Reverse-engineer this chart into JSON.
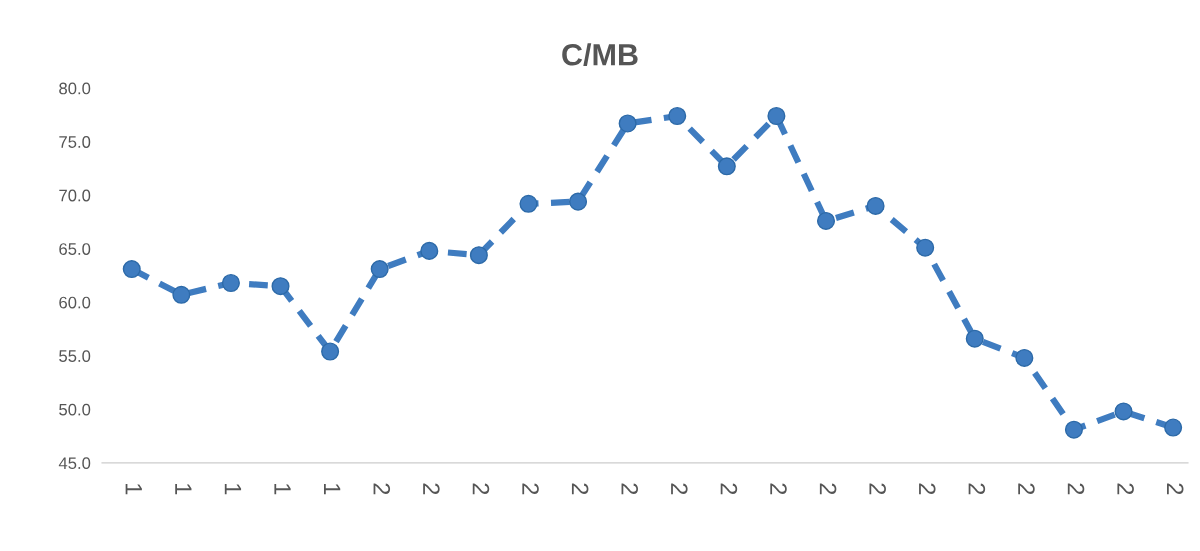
{
  "chart_data": {
    "type": "line",
    "title": "C/MB",
    "categories": [
      "1",
      "1",
      "1",
      "1",
      "1",
      "2",
      "2",
      "2",
      "2",
      "2",
      "2",
      "2",
      "2",
      "2",
      "2",
      "2",
      "2",
      "2",
      "2",
      "2",
      "2",
      "2"
    ],
    "series": [
      {
        "color": "#3f7cc0",
        "values": [
          63.1,
          60.7,
          61.8,
          61.5,
          55.4,
          63.1,
          64.8,
          64.4,
          69.2,
          69.4,
          76.7,
          77.4,
          72.7,
          77.4,
          67.6,
          69.0,
          65.1,
          56.6,
          54.8,
          48.1,
          49.8,
          48.3
        ]
      }
    ],
    "ylim": [
      45,
      80
    ],
    "yticks": [
      {
        "value": 45,
        "label": "45.0"
      },
      {
        "value": 50,
        "label": "50.0"
      },
      {
        "value": 55,
        "label": "55.0"
      },
      {
        "value": 60,
        "label": "60.0"
      },
      {
        "value": 65,
        "label": "65.0"
      },
      {
        "value": 70,
        "label": "70.0"
      },
      {
        "value": 75,
        "label": "75.0"
      },
      {
        "value": 80,
        "label": "80.0"
      }
    ],
    "grid": false,
    "marker": "circle",
    "line_style": "dashed"
  }
}
